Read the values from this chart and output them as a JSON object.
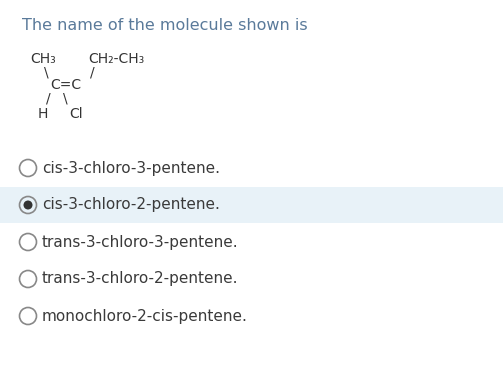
{
  "title": "The name of the molecule shown is",
  "title_color": "#5a7a9a",
  "title_fontsize": 11.5,
  "background_color": "#ffffff",
  "molecule": {
    "ch3_label": "CH₃",
    "ch2ch3_label": "CH₂-CH₃",
    "cc_label": "C=C",
    "h_label": "H",
    "cl_label": "Cl"
  },
  "options": [
    "cis-3-chloro-3-pentene.",
    "cis-3-chloro-2-pentene.",
    "trans-3-chloro-3-pentene.",
    "trans-3-chloro-2-pentene.",
    "monochloro-2-cis-pentene."
  ],
  "selected_index": 1,
  "selected_bg": "#e8f2f8",
  "radio_edge_color": "#888888",
  "radio_filled_color": "#333333",
  "option_fontsize": 11,
  "option_color": "#3a3a3a",
  "molecule_fontsize": 10,
  "molecule_color": "#333333",
  "fig_width": 5.03,
  "fig_height": 3.82,
  "dpi": 100
}
